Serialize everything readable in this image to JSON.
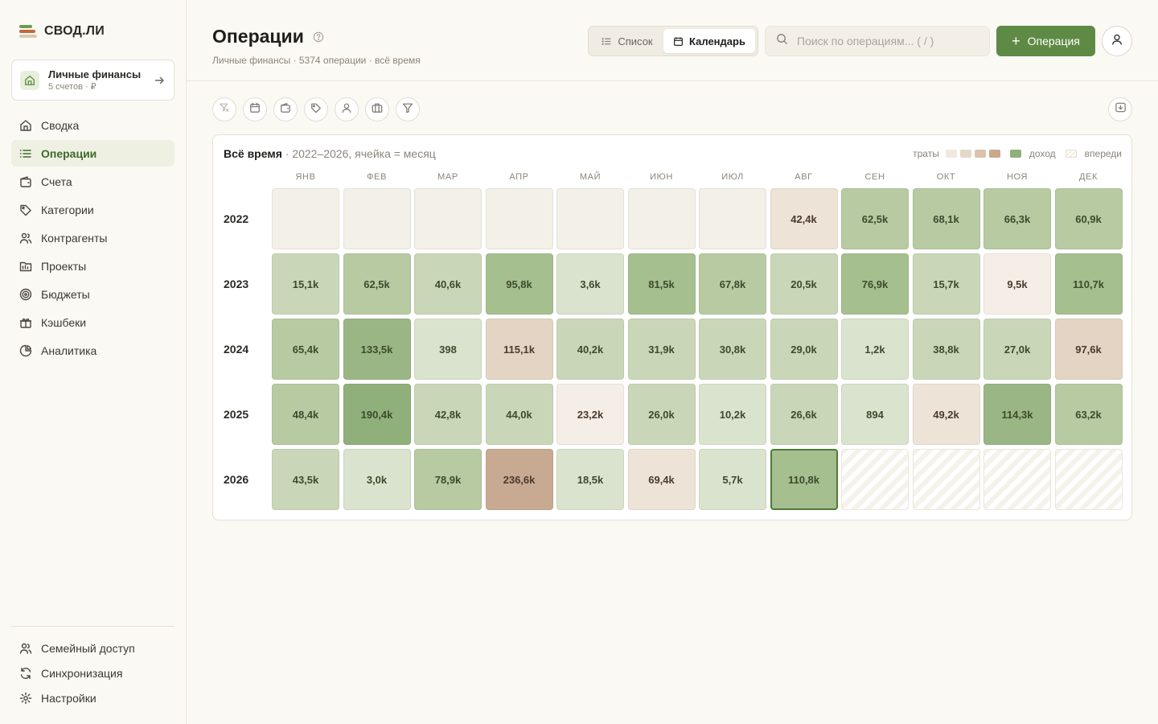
{
  "app": {
    "name": "СВОД.ЛИ",
    "colors": {
      "accent": "#5f8a45",
      "active_nav": "#3f6a2c"
    }
  },
  "workspace": {
    "name": "Личные финансы",
    "sub": "5 счетов · ₽"
  },
  "nav": [
    {
      "label": "Сводка",
      "icon": "home-icon",
      "active": false
    },
    {
      "label": "Операции",
      "icon": "list-icon",
      "active": true
    },
    {
      "label": "Счета",
      "icon": "wallet-icon",
      "active": false
    },
    {
      "label": "Категории",
      "icon": "tag-icon",
      "active": false
    },
    {
      "label": "Контрагенты",
      "icon": "people-icon",
      "active": false
    },
    {
      "label": "Проекты",
      "icon": "folder-icon",
      "active": false
    },
    {
      "label": "Бюджеты",
      "icon": "target-icon",
      "active": false
    },
    {
      "label": "Кэшбеки",
      "icon": "gift-icon",
      "active": false
    },
    {
      "label": "Аналитика",
      "icon": "pie-icon",
      "active": false
    }
  ],
  "nav_bottom": [
    {
      "label": "Семейный доступ",
      "icon": "people-icon"
    },
    {
      "label": "Синхронизация",
      "icon": "sync-icon"
    },
    {
      "label": "Настройки",
      "icon": "gear-icon"
    }
  ],
  "header": {
    "title": "Операции",
    "subtitle": "Личные финансы · 5374 операции · всё время",
    "view_list": "Список",
    "view_calendar": "Календарь",
    "search_placeholder": "Поиск по операциям... ( / )",
    "add_button": "Операция"
  },
  "filters": [
    "filter-reset-icon",
    "calendar-icon",
    "wallet-icon",
    "tag-icon",
    "person-icon",
    "briefcase-icon",
    "funnel-icon"
  ],
  "calendar": {
    "title_bold": "Всё время",
    "title_rest": " · 2022–2026, ячейка = месяц",
    "legend": {
      "spend": "траты",
      "income": "доход",
      "ahead": "впереди"
    },
    "legend_spend_colors": [
      "#f1e9de",
      "#e6d8c6",
      "#d9c3ac",
      "#c9a88c"
    ],
    "legend_income_color": "#8fb07a",
    "months": [
      "ЯНВ",
      "ФЕВ",
      "МАР",
      "АПР",
      "МАЙ",
      "ИЮН",
      "ИЮЛ",
      "АВГ",
      "СЕН",
      "ОКТ",
      "НОЯ",
      "ДЕК"
    ],
    "years": [
      {
        "year": "2022",
        "cells": [
          {
            "kind": "empty",
            "label": ""
          },
          {
            "kind": "empty",
            "label": ""
          },
          {
            "kind": "empty",
            "label": ""
          },
          {
            "kind": "empty",
            "label": ""
          },
          {
            "kind": "empty",
            "label": ""
          },
          {
            "kind": "empty",
            "label": ""
          },
          {
            "kind": "empty",
            "label": ""
          },
          {
            "kind": "spend",
            "level": 1,
            "label": "42,4k"
          },
          {
            "kind": "income",
            "level": 2,
            "label": "62,5k"
          },
          {
            "kind": "income",
            "level": 2,
            "label": "68,1k"
          },
          {
            "kind": "income",
            "level": 2,
            "label": "66,3k"
          },
          {
            "kind": "income",
            "level": 2,
            "label": "60,9k"
          }
        ]
      },
      {
        "year": "2023",
        "cells": [
          {
            "kind": "income",
            "level": 1,
            "label": "15,1k"
          },
          {
            "kind": "income",
            "level": 2,
            "label": "62,5k"
          },
          {
            "kind": "income",
            "level": 1,
            "label": "40,6k"
          },
          {
            "kind": "income",
            "level": 3,
            "label": "95,8k"
          },
          {
            "kind": "income",
            "level": 0,
            "label": "3,6k"
          },
          {
            "kind": "income",
            "level": 3,
            "label": "81,5k"
          },
          {
            "kind": "income",
            "level": 2,
            "label": "67,8k"
          },
          {
            "kind": "income",
            "level": 1,
            "label": "20,5k"
          },
          {
            "kind": "income",
            "level": 3,
            "label": "76,9k"
          },
          {
            "kind": "income",
            "level": 1,
            "label": "15,7k"
          },
          {
            "kind": "spend",
            "level": 0,
            "label": "9,5k"
          },
          {
            "kind": "income",
            "level": 3,
            "label": "110,7k"
          }
        ]
      },
      {
        "year": "2024",
        "cells": [
          {
            "kind": "income",
            "level": 2,
            "label": "65,4k"
          },
          {
            "kind": "income",
            "level": 4,
            "label": "133,5k"
          },
          {
            "kind": "income",
            "level": 0,
            "label": "398"
          },
          {
            "kind": "spend",
            "level": 2,
            "label": "115,1k"
          },
          {
            "kind": "income",
            "level": 1,
            "label": "40,2k"
          },
          {
            "kind": "income",
            "level": 1,
            "label": "31,9k"
          },
          {
            "kind": "income",
            "level": 1,
            "label": "30,8k"
          },
          {
            "kind": "income",
            "level": 1,
            "label": "29,0k"
          },
          {
            "kind": "income",
            "level": 0,
            "label": "1,2k"
          },
          {
            "kind": "income",
            "level": 1,
            "label": "38,8k"
          },
          {
            "kind": "income",
            "level": 1,
            "label": "27,0k"
          },
          {
            "kind": "spend",
            "level": 2,
            "label": "97,6k"
          }
        ]
      },
      {
        "year": "2025",
        "cells": [
          {
            "kind": "income",
            "level": 2,
            "label": "48,4k"
          },
          {
            "kind": "income",
            "level": 5,
            "label": "190,4k"
          },
          {
            "kind": "income",
            "level": 1,
            "label": "42,8k"
          },
          {
            "kind": "income",
            "level": 1,
            "label": "44,0k"
          },
          {
            "kind": "spend",
            "level": 0,
            "label": "23,2k"
          },
          {
            "kind": "income",
            "level": 1,
            "label": "26,0k"
          },
          {
            "kind": "income",
            "level": 0,
            "label": "10,2k"
          },
          {
            "kind": "income",
            "level": 1,
            "label": "26,6k"
          },
          {
            "kind": "income",
            "level": 0,
            "label": "894"
          },
          {
            "kind": "spend",
            "level": 1,
            "label": "49,2k"
          },
          {
            "kind": "income",
            "level": 4,
            "label": "114,3k"
          },
          {
            "kind": "income",
            "level": 2,
            "label": "63,2k"
          }
        ]
      },
      {
        "year": "2026",
        "cells": [
          {
            "kind": "income",
            "level": 1,
            "label": "43,5k"
          },
          {
            "kind": "income",
            "level": 0,
            "label": "3,0k"
          },
          {
            "kind": "income",
            "level": 2,
            "label": "78,9k"
          },
          {
            "kind": "spend",
            "level": 3,
            "label": "236,6k"
          },
          {
            "kind": "income",
            "level": 0,
            "label": "18,5k"
          },
          {
            "kind": "spend",
            "level": 1,
            "label": "69,4k"
          },
          {
            "kind": "income",
            "level": 0,
            "label": "5,7k"
          },
          {
            "kind": "income",
            "level": 3,
            "label": "110,8k",
            "current": true
          },
          {
            "kind": "future",
            "label": ""
          },
          {
            "kind": "future",
            "label": ""
          },
          {
            "kind": "future",
            "label": ""
          },
          {
            "kind": "future",
            "label": ""
          }
        ]
      }
    ]
  }
}
